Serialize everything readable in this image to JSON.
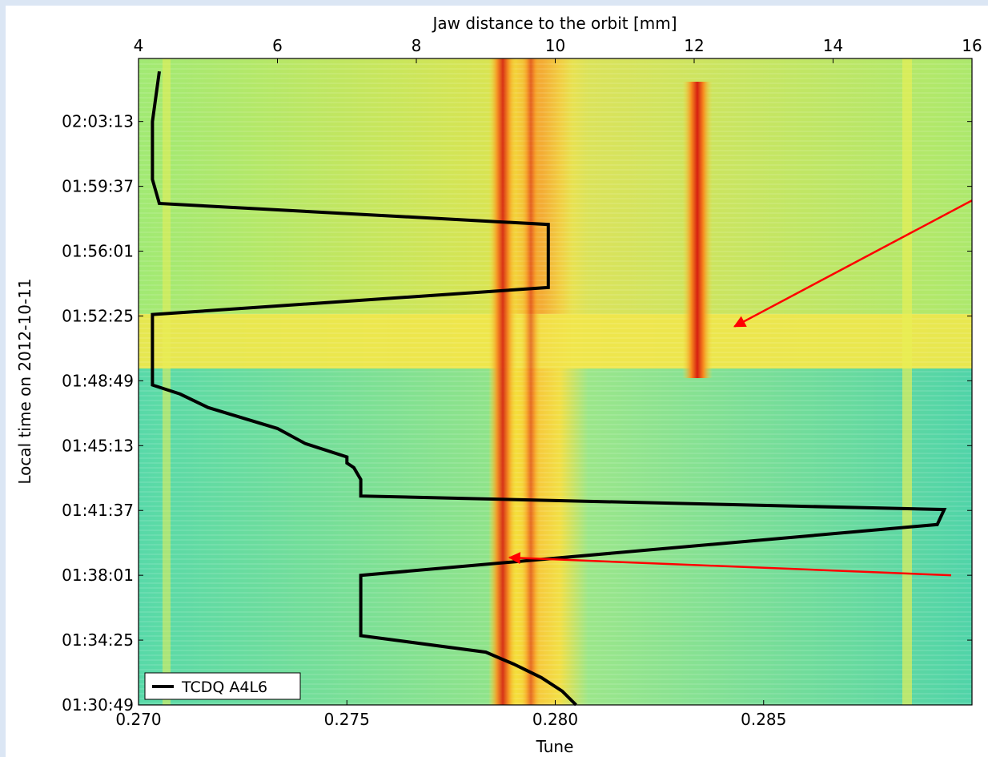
{
  "chart_data": {
    "type": "heatmap",
    "xlabel": "Tune",
    "x2label": "Jaw distance to the orbit [mm]",
    "ylabel": "Local time on 2012-10-11",
    "xlim": [
      0.27,
      0.29
    ],
    "x2lim": [
      4,
      16
    ],
    "xticks": [
      "0.270",
      "0.275",
      "0.280",
      "0.285"
    ],
    "x2ticks": [
      "4",
      "6",
      "8",
      "10",
      "12",
      "14",
      "16"
    ],
    "ylim_minutes_from_start": [
      0,
      35.9
    ],
    "yticks": [
      "01:30:49",
      "01:34:25",
      "01:38:01",
      "01:41:37",
      "01:45:13",
      "01:48:49",
      "01:52:25",
      "01:56:01",
      "01:59:37",
      "02:03:13"
    ],
    "colormap": "jet",
    "grid": false,
    "legend_placement": "lower-left",
    "series": [
      {
        "name": "TCDQ A4L6",
        "color": "#000000",
        "time": [
          "01:30:49",
          "01:31:35",
          "01:32:20",
          "01:33:05",
          "01:33:45",
          "01:34:40",
          "01:36:30",
          "01:37:50",
          "01:38:01",
          "01:40:50",
          "01:41:40",
          "01:42:25",
          "01:43:20",
          "01:44:00",
          "01:44:15",
          "01:44:35",
          "01:45:20",
          "01:46:10",
          "01:47:20",
          "01:48:05",
          "01:48:35",
          "01:52:30",
          "01:54:00",
          "01:56:20",
          "01:57:30",
          "01:58:40",
          "02:00:00",
          "02:03:13",
          "02:06:00"
        ],
        "jaw_mm": [
          10.3,
          10.1,
          9.8,
          9.4,
          9.0,
          7.2,
          7.2,
          7.2,
          7.2,
          15.5,
          15.6,
          7.2,
          7.2,
          7.1,
          7.0,
          7.0,
          6.4,
          6.0,
          5.0,
          4.6,
          4.2,
          4.2,
          9.9,
          9.9,
          9.9,
          4.3,
          4.2,
          4.2,
          4.3
        ]
      }
    ],
    "annotations": [
      {
        "type": "arrow",
        "color": "#ff0000",
        "from": {
          "tune": 0.2895,
          "time": "01:38:01"
        },
        "to": {
          "tune": 0.2789,
          "time": "01:39:00"
        }
      },
      {
        "type": "arrow",
        "color": "#ff0000",
        "from": {
          "tune": 0.29,
          "time": "01:58:50"
        },
        "to": {
          "tune": 0.2843,
          "time": "01:51:50"
        }
      }
    ]
  }
}
